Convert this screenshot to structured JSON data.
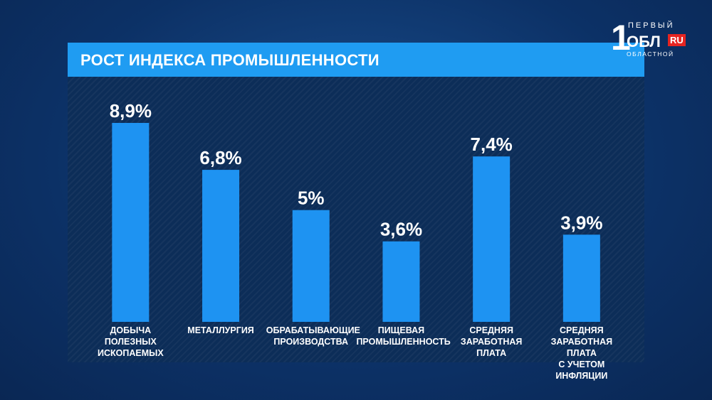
{
  "logo": {
    "digit": "1",
    "top": "ПЕРВЫЙ",
    "middle": "ОБЛ",
    "badge": "RU",
    "bottom": "ОБЛАСТНОЙ"
  },
  "chart_data": {
    "type": "bar",
    "title": "РОСТ ИНДЕКСА ПРОМЫШЛЕННОСТИ",
    "categories": [
      "ДОБЫЧА\nПОЛЕЗНЫХ\nИСКОПАЕМЫХ",
      "МЕТАЛЛУРГИЯ",
      "ОБРАБАТЫВАЮЩИЕ\nПРОИЗВОДСТВА",
      "ПИЩЕВАЯ\nПРОМЫШЛЕННОСТЬ",
      "СРЕДНЯЯ\nЗАРАБОТНАЯ\nПЛАТА",
      "СРЕДНЯЯ\nЗАРАБОТНАЯ ПЛАТА\nС УЧЕТОМ ИНФЛЯЦИИ"
    ],
    "values": [
      8.9,
      6.8,
      5,
      3.6,
      7.4,
      3.9
    ],
    "value_labels": [
      "8,9%",
      "6,8%",
      "5%",
      "3,6%",
      "7,4%",
      "3,9%"
    ],
    "color": "#1e93f2"
  }
}
